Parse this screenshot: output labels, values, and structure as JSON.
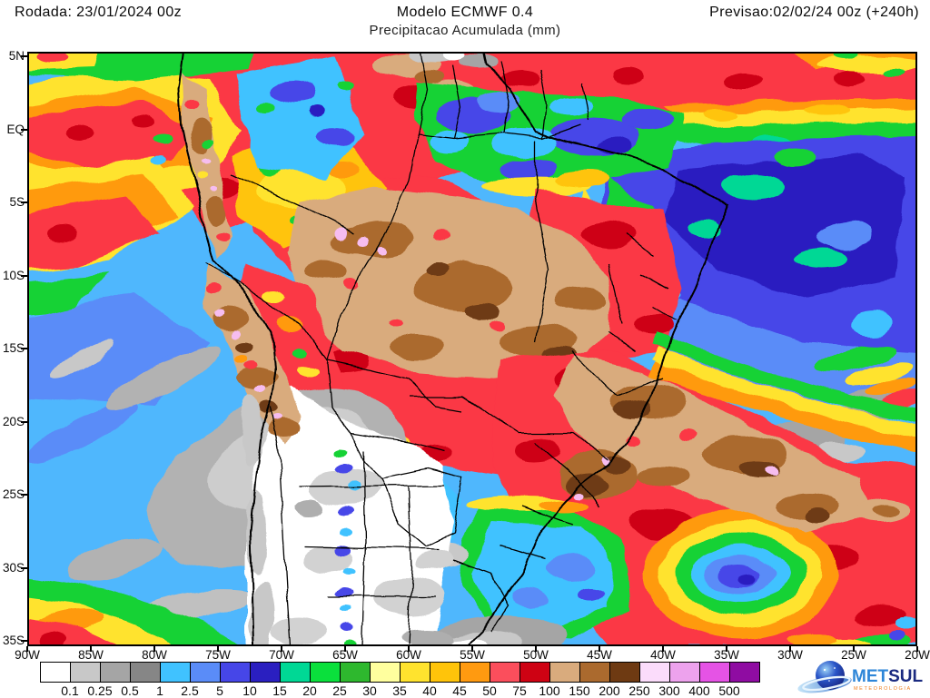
{
  "header": {
    "run": "Rodada: 23/01/2024 00z",
    "model": "Modelo ECMWF 0.4",
    "subtitle": "Precipitacao Acumulada (mm)",
    "forecast": "Previsao:02/02/24 00z (+240h)"
  },
  "axes": {
    "lat": [
      "5N",
      "EQ",
      "5S",
      "10S",
      "15S",
      "20S",
      "25S",
      "30S",
      "35S"
    ],
    "lon": [
      "90W",
      "85W",
      "80W",
      "75W",
      "70W",
      "65W",
      "60W",
      "55W",
      "50W",
      "45W",
      "40W",
      "35W",
      "30W",
      "25W",
      "20W"
    ]
  },
  "legend": {
    "unit": "mm",
    "thresholds": [
      "0.1",
      "0.25",
      "0.5",
      "1",
      "2.5",
      "5",
      "10",
      "15",
      "20",
      "25",
      "30",
      "35",
      "40",
      "45",
      "50",
      "75",
      "100",
      "150",
      "200",
      "250",
      "300",
      "400",
      "500"
    ],
    "colors": [
      "#ffffff",
      "#c8c8c8",
      "#a5a5a5",
      "#868686",
      "#40c2ff",
      "#5a8cf8",
      "#4646e8",
      "#2a1fc0",
      "#00d895",
      "#0ae03c",
      "#2eb82e",
      "#ffff9e",
      "#ffe32e",
      "#ffc40a",
      "#ff9a10",
      "#fb4e5c",
      "#ce0213",
      "#d9ab7d",
      "#ab6a2e",
      "#6e3a12",
      "#fbdcfb",
      "#eda2ed",
      "#e553e5",
      "#8f0ca2"
    ]
  },
  "branding": {
    "name_primary": "MET",
    "name_secondary": "SUL",
    "tagline": "METEOROLOGIA",
    "accent_blue": "#2e86d8",
    "accent_navy": "#1a2a80",
    "accent_orange": "#f08020"
  }
}
